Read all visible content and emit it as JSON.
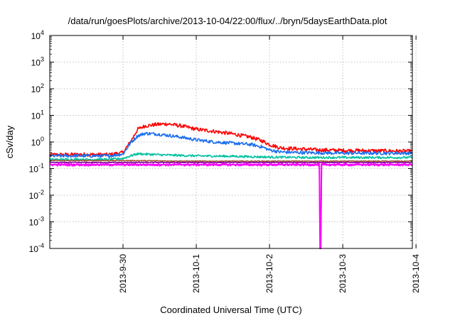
{
  "chart_data": {
    "type": "line",
    "title": "/data/run/goesPlots/archive/2013-10-04/22:00/flux/../bryn/5daysEarthData.plot",
    "xlabel": "Coordinated Universal Time (UTC)",
    "ylabel": "cSv/day",
    "yscale": "log",
    "ylim": [
      0.0001,
      10000
    ],
    "xlim": [
      -1.0,
      3.95
    ],
    "x_origin": "2013-09-30",
    "x_unit": "days",
    "grid": true,
    "legend": "none",
    "y_ticks": [
      {
        "base": "10",
        "exp": "-4",
        "value": 0.0001
      },
      {
        "base": "10",
        "exp": "-3",
        "value": 0.001
      },
      {
        "base": "10",
        "exp": "-2",
        "value": 0.01
      },
      {
        "base": "10",
        "exp": "-1",
        "value": 0.1
      },
      {
        "base": "10",
        "exp": "0",
        "value": 1
      },
      {
        "base": "10",
        "exp": "1",
        "value": 10
      },
      {
        "base": "10",
        "exp": "2",
        "value": 100
      },
      {
        "base": "10",
        "exp": "3",
        "value": 1000
      },
      {
        "base": "10",
        "exp": "4",
        "value": 10000
      }
    ],
    "x_ticks": [
      {
        "label": "2013-9-30",
        "value": 0
      },
      {
        "label": "2013-10-1",
        "value": 1
      },
      {
        "label": "2013-10-2",
        "value": 2
      },
      {
        "label": "2013-10-3",
        "value": 3
      },
      {
        "label": "2013-10-4",
        "value": 4
      }
    ],
    "series": [
      {
        "color": "#ff0000",
        "x": [
          -1.0,
          -0.5,
          -0.2,
          0.0,
          0.1,
          0.2,
          0.3,
          0.45,
          0.6,
          0.8,
          1.0,
          1.25,
          1.5,
          1.75,
          1.9,
          2.0,
          2.15,
          2.4,
          2.7,
          3.0,
          3.3,
          3.6,
          3.95
        ],
        "y": [
          0.33,
          0.34,
          0.33,
          0.4,
          1.0,
          3.0,
          4.0,
          4.5,
          4.8,
          4.0,
          3.0,
          2.5,
          2.0,
          1.5,
          1.1,
          0.8,
          0.6,
          0.55,
          0.5,
          0.48,
          0.47,
          0.46,
          0.45
        ]
      },
      {
        "color": "#1a6ef0",
        "x": [
          -1.0,
          -0.5,
          -0.2,
          0.0,
          0.1,
          0.2,
          0.3,
          0.45,
          0.6,
          0.8,
          1.0,
          1.25,
          1.5,
          1.75,
          1.9,
          2.0,
          2.15,
          2.4,
          2.7,
          3.0,
          3.3,
          3.6,
          3.95
        ],
        "y": [
          0.3,
          0.3,
          0.3,
          0.35,
          0.9,
          1.7,
          2.1,
          2.0,
          1.8,
          1.5,
          1.2,
          1.0,
          0.9,
          0.8,
          0.65,
          0.5,
          0.42,
          0.4,
          0.39,
          0.38,
          0.38,
          0.38,
          0.38
        ]
      },
      {
        "color": "#00c0a0",
        "x": [
          -1.0,
          -0.5,
          -0.2,
          0.0,
          0.1,
          0.2,
          0.3,
          0.5,
          0.8,
          1.0,
          1.5,
          2.0,
          2.5,
          3.0,
          3.5,
          3.95
        ],
        "y": [
          0.22,
          0.22,
          0.22,
          0.24,
          0.3,
          0.36,
          0.35,
          0.33,
          0.31,
          0.3,
          0.29,
          0.27,
          0.26,
          0.26,
          0.26,
          0.26
        ]
      },
      {
        "color": "#a05a2c",
        "x": [
          -1.0,
          0.0,
          1.0,
          2.0,
          3.0,
          3.95
        ],
        "y": [
          0.2,
          0.2,
          0.19,
          0.19,
          0.19,
          0.19
        ]
      },
      {
        "color": "#8000a0",
        "x": [
          -1.0,
          0.0,
          1.0,
          2.0,
          3.0,
          3.95
        ],
        "y": [
          0.17,
          0.17,
          0.17,
          0.17,
          0.17,
          0.17
        ]
      },
      {
        "color": "#ff00ff",
        "x": [
          -1.0,
          -0.5,
          0.0,
          0.5,
          1.0,
          1.5,
          2.0,
          2.5,
          2.68,
          2.69,
          2.7,
          2.71,
          3.0,
          3.5,
          3.95
        ],
        "y": [
          0.14,
          0.14,
          0.14,
          0.14,
          0.14,
          0.14,
          0.14,
          0.14,
          0.14,
          0.0001,
          0.0001,
          0.14,
          0.14,
          0.14,
          0.14
        ]
      }
    ]
  }
}
